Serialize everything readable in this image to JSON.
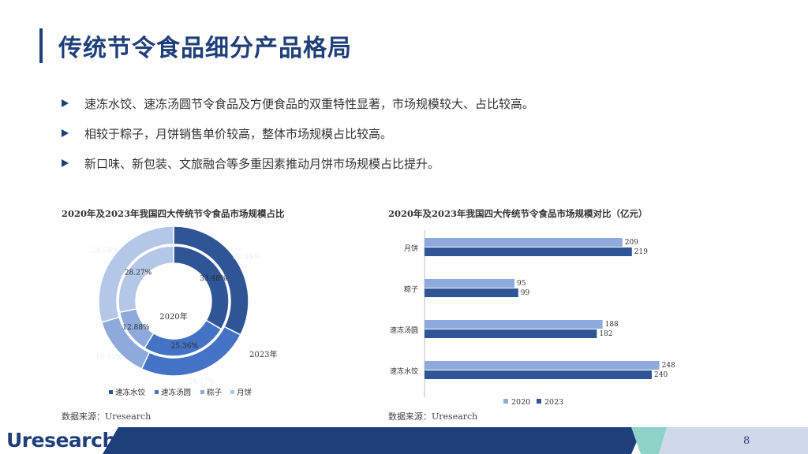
{
  "title": "传统节令食品细分产品格局",
  "bullets": [
    "速冻水饺、速冻汤圆节令食品及方便食品的双重特性显著，市场规模较大、占比较高。",
    "相较于粽子，月饼销售单价较高，整体市场规模占比较高。",
    "新口味、新包装、文旅融合等多重因素推动月饼市场规模占比提升。"
  ],
  "left_chart": {
    "title": "2020年及2023年我国四大传统节令食品市场规模占比",
    "source": "数据来源：Uresearch"
  },
  "right_chart": {
    "title": "2020年及2023年我国四大传统节令食品市场规模对比（亿元）",
    "source": "数据来源：Uresearch"
  },
  "chart_data": [
    {
      "type": "pie",
      "title": "2020年及2023年我国四大传统节令食品市场规模占比",
      "categories": [
        "速冻水饺",
        "速冻汤圆",
        "粽子",
        "月饼"
      ],
      "colors": [
        "#2f5597",
        "#4472c4",
        "#8ea9db",
        "#b4c7e7"
      ],
      "series": [
        {
          "name": "2020年",
          "values": [
            33.48,
            25.36,
            12.88,
            28.27
          ],
          "labels": [
            "33.48%",
            "25.36%",
            "12.88%",
            "28.27%"
          ]
        },
        {
          "name": "2023年",
          "values": [
            32.44,
            24.57,
            13.41,
            29.58
          ],
          "labels": [
            "32.44%",
            "24.57%",
            "13.41%",
            "29.58%"
          ]
        }
      ],
      "legend_position": "bottom"
    },
    {
      "type": "bar",
      "orientation": "horizontal",
      "title": "2020年及2023年我国四大传统节令食品市场规模对比（亿元）",
      "categories": [
        "月饼",
        "粽子",
        "速冻汤圆",
        "速冻水饺"
      ],
      "series": [
        {
          "name": "2020",
          "values": [
            209,
            95,
            188,
            248
          ],
          "color": "#8ea9db"
        },
        {
          "name": "2023",
          "values": [
            219,
            99,
            182,
            240
          ],
          "color": "#2f5597"
        }
      ],
      "xlim": [
        0,
        300
      ],
      "grid": false,
      "legend_position": "bottom"
    }
  ],
  "footer": {
    "logo": "Uresearch",
    "page_number": "8",
    "colors": {
      "navy": "#1f3f7a",
      "teal": "#8fd3c8",
      "light": "#cfd9ea"
    }
  }
}
